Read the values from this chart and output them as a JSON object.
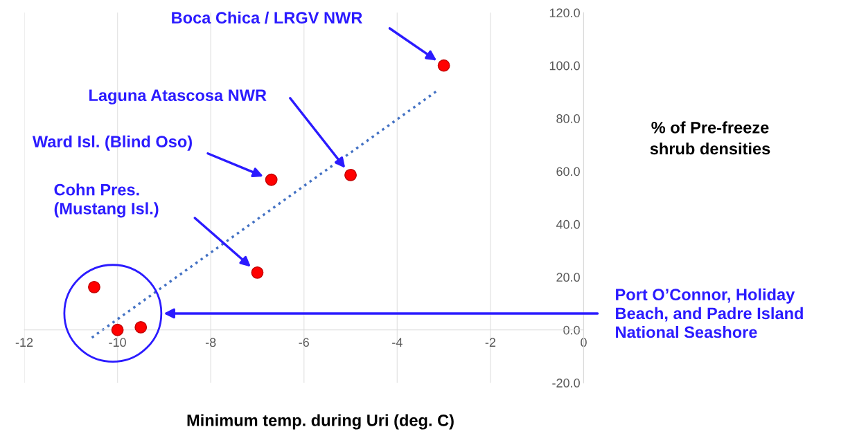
{
  "chart_data": {
    "type": "scatter",
    "xlabel": "Minimum temp. during Uri (deg. C)",
    "ylabel": "% of Pre-freeze\nshrub densities",
    "xlim": [
      -12,
      0
    ],
    "ylim": [
      -20,
      120
    ],
    "xticks": [
      -12,
      -10,
      -8,
      -6,
      -4,
      -2,
      0
    ],
    "yticks": [
      {
        "value": -20,
        "label": "-20.0"
      },
      {
        "value": 0,
        "label": "0.0"
      },
      {
        "value": 20,
        "label": "20.0"
      },
      {
        "value": 40,
        "label": "40.0"
      },
      {
        "value": 60,
        "label": "60.0"
      },
      {
        "value": 80,
        "label": "80.0"
      },
      {
        "value": 100,
        "label": "100.0"
      },
      {
        "value": 120,
        "label": "120.0"
      }
    ],
    "grid": "x",
    "marker": "circle",
    "legend": false,
    "series": [
      {
        "color": "#ff0000",
        "x": [
          -3.0,
          -5.0,
          -6.7,
          -7.0,
          -10.5,
          -10.0,
          -9.5
        ],
        "values": [
          100,
          58.6,
          56.8,
          21.7,
          16.2,
          0,
          1.0
        ]
      },
      {
        "type": "line",
        "color": "#4472c4",
        "line_style": "dotted",
        "marker": "none",
        "x": [
          -10.55,
          -3.1
        ],
        "values": [
          -2.9,
          91
        ]
      }
    ],
    "annotations": [
      "Boca Chica / LRGV NWR",
      "Laguna Atascosa NWR",
      "Ward Isl. (Blind Oso)",
      "Cohn Pres.\n(Mustang Isl.)",
      "Port O’Connor, Holiday\nBeach, and Padre Island\nNational Seashore"
    ]
  }
}
